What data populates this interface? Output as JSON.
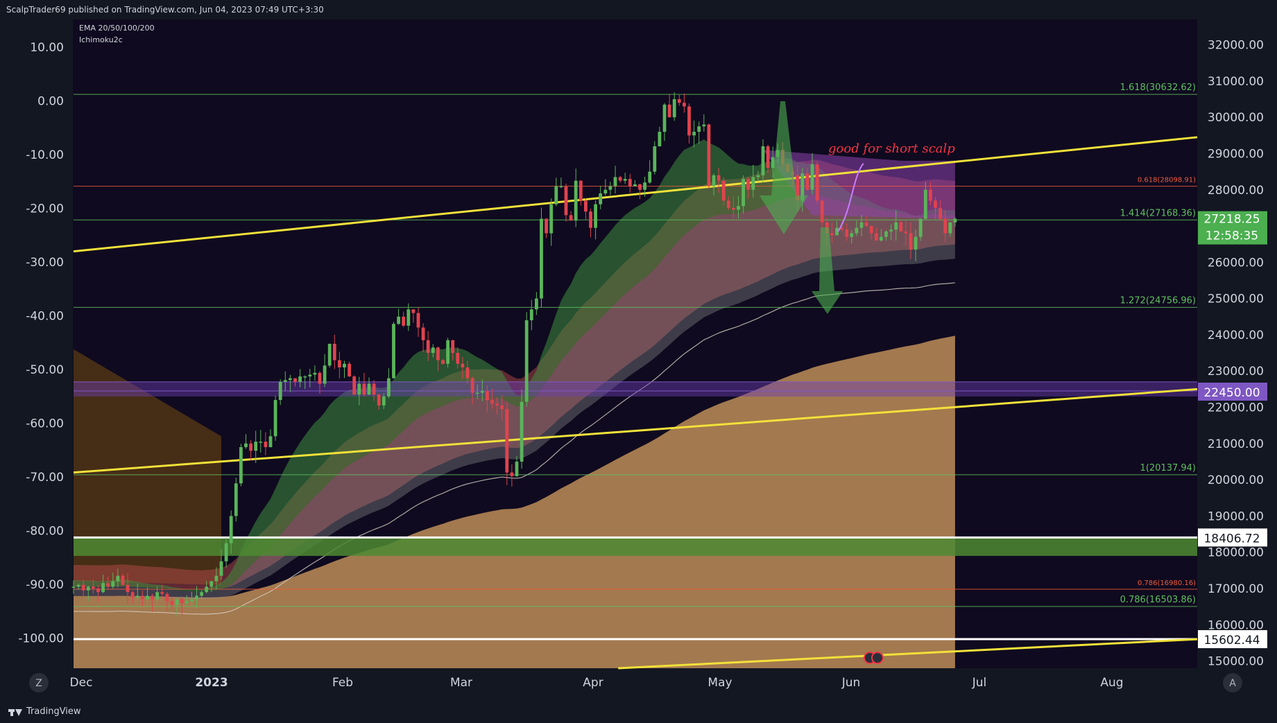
{
  "publisher_line": "ScalpTrader69 published on TradingView.com, Jun 04, 2023 07:49 UTC+3:30",
  "brand": "TradingView",
  "left_button": "Z",
  "right_button": "A",
  "colors": {
    "background": "#0f0a1f",
    "bull": "#5ab55a",
    "bear": "#e0434e",
    "trendline": "#f2e13a",
    "fib_green": "#5fbf5f",
    "fib_red": "#f05a3b",
    "price_tag": "#4caf50",
    "purple_tag": "#7e57c2",
    "annotation": "#f23645"
  },
  "chart_data": {
    "type": "candlestick",
    "legend": [
      "EMA 20/50/100/200",
      "Ichimoku2c"
    ],
    "annotation": "good for short scalp",
    "y_axis_right": {
      "ticks": [
        "32000.00",
        "31000.00",
        "30000.00",
        "29000.00",
        "28000.00",
        "27000.00",
        "26000.00",
        "25000.00",
        "24000.00",
        "23000.00",
        "22000.00",
        "21000.00",
        "20000.00",
        "19000.00",
        "18000.00",
        "17000.00",
        "16000.00",
        "15000.00"
      ],
      "range": [
        14800,
        32700
      ]
    },
    "y_axis_left": {
      "ticks": [
        "10.00",
        "0.00",
        "-10.00",
        "-20.00",
        "-30.00",
        "-40.00",
        "-50.00",
        "-60.00",
        "-70.00",
        "-80.00",
        "-90.00",
        "-100.00"
      ]
    },
    "x_axis": {
      "ticks": [
        "Dec",
        "2023",
        "Feb",
        "Mar",
        "Apr",
        "May",
        "Jun",
        "Jul",
        "Aug"
      ]
    },
    "price_labels": {
      "last_price": "27218.25",
      "countdown": "12:58:35",
      "purple_level": "22450.00",
      "white_level_1": "18406.72",
      "white_level_2": "15602.44"
    },
    "fib_levels": [
      {
        "label": "1.618(30632.62)",
        "value": 30632.62,
        "color": "green"
      },
      {
        "label": "0.618(28098.91)",
        "value": 28098.91,
        "color": "red"
      },
      {
        "label": "1.414(27168.36)",
        "value": 27168.36,
        "color": "green"
      },
      {
        "label": "1.272(24756.96)",
        "value": 24756.96,
        "color": "green"
      },
      {
        "label": "1(20137.94)",
        "value": 20137.94,
        "color": "green"
      },
      {
        "label": "0.786(16980.16)",
        "value": 16980.16,
        "color": "red"
      },
      {
        "label": "0.786(16503.86)",
        "value": 16503.86,
        "color": "green"
      }
    ],
    "horizontal_levels": [
      {
        "name": "purple_top",
        "value": 22700
      },
      {
        "name": "purple_bottom",
        "value": 22450
      },
      {
        "name": "white_1",
        "value": 18406.72
      },
      {
        "name": "white_2",
        "value": 15602.44
      }
    ],
    "trendlines": [
      {
        "name": "upper",
        "from": [
          0,
          26300
        ],
        "to": [
          196,
          29450
        ]
      },
      {
        "name": "middle",
        "from": [
          0,
          20200
        ],
        "to": [
          196,
          22500
        ]
      },
      {
        "name": "lower",
        "from": [
          95,
          14800
        ],
        "to": [
          196,
          15600
        ]
      }
    ],
    "series": [
      {
        "name": "price",
        "description": "daily closes Dec 2022 - Jun 4 2023",
        "closes": [
          17050,
          17100,
          16950,
          17050,
          17000,
          16900,
          17150,
          17050,
          17200,
          17350,
          17100,
          16900,
          16750,
          16800,
          16700,
          16800,
          16700,
          16900,
          16850,
          16650,
          16550,
          16700,
          16600,
          16650,
          16700,
          16800,
          16900,
          17050,
          17200,
          17350,
          17750,
          18250,
          19000,
          19900,
          20900,
          21000,
          20800,
          21050,
          21050,
          20900,
          21200,
          22200,
          22700,
          22750,
          22800,
          22700,
          22850,
          22850,
          22900,
          22950,
          22650,
          23150,
          23750,
          23300,
          23100,
          23200,
          22850,
          22350,
          22650,
          22350,
          22650,
          22350,
          22050,
          22300,
          22800,
          24300,
          24500,
          24250,
          24700,
          24600,
          24200,
          23850,
          23500,
          23650,
          23300,
          23200,
          23850,
          23500,
          23200,
          23100,
          22800,
          22400,
          22400,
          22450,
          22200,
          22100,
          22050,
          21950,
          20200,
          20100,
          20500,
          22150,
          24400,
          24700,
          25000,
          27200,
          26800,
          27600,
          28100,
          28100,
          27300,
          27150,
          28250,
          27700,
          27400,
          26950,
          27600,
          27900,
          28000,
          28100,
          28350,
          28250,
          28300,
          28100,
          28150,
          28000,
          28200,
          28500,
          29200,
          29600,
          30350,
          30000,
          30500,
          30400,
          30300,
          29500,
          29600,
          29750,
          29800,
          28100,
          28400,
          28250,
          27700,
          27500,
          27450,
          27550,
          28300,
          28000,
          28350,
          28400,
          29200,
          28600,
          28900,
          29100,
          28700,
          28500,
          28400,
          27700,
          28450,
          28000,
          28700,
          27700,
          27100,
          26800,
          26750,
          26950,
          26900,
          26700,
          26800,
          26950,
          27100,
          27000,
          26800,
          26600,
          26700,
          26850,
          26900,
          27100,
          26850,
          26800,
          26350,
          26700,
          27200,
          28000,
          27700,
          27500,
          27200,
          26800,
          27100,
          27200
        ]
      }
    ]
  }
}
